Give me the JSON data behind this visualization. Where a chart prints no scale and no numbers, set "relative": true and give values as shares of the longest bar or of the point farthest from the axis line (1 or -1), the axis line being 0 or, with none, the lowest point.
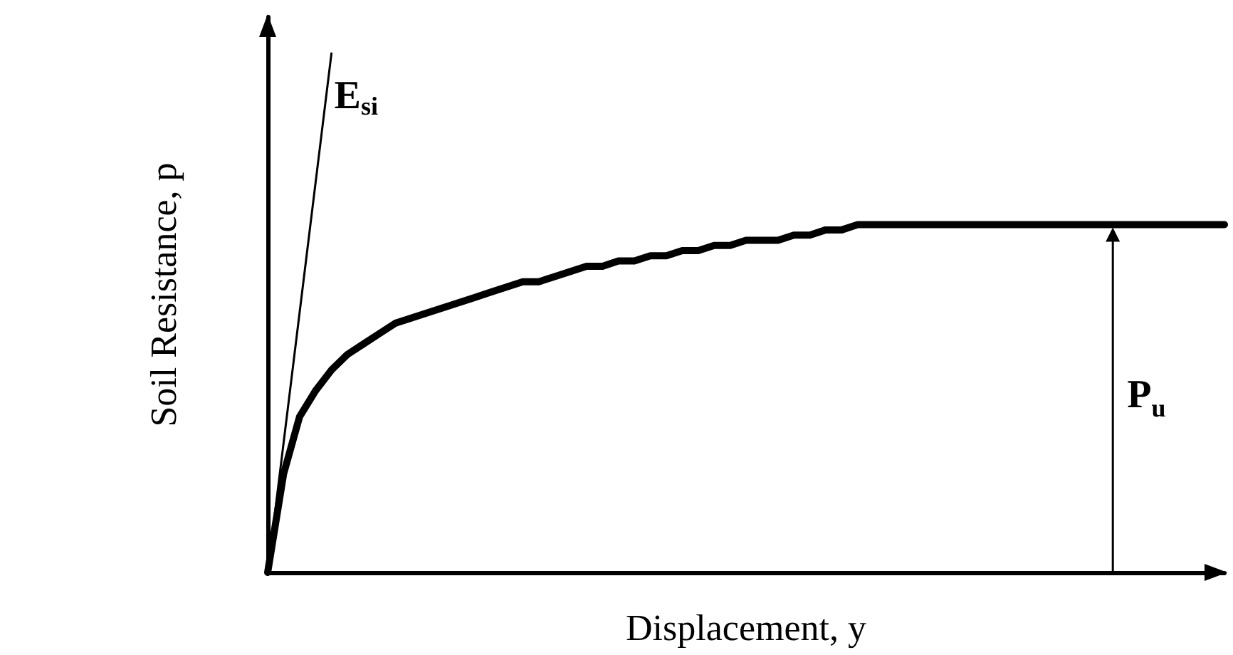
{
  "chart_data": {
    "type": "line",
    "relative": true,
    "xlabel": "Displacement, y",
    "ylabel": "Soil Resistance, p",
    "tick_labels": false,
    "grid": false,
    "marker": "none",
    "categories": [
      null,
      null,
      null,
      null,
      null,
      null,
      null,
      null,
      null,
      null,
      null,
      null,
      null,
      null,
      null,
      null,
      null,
      null,
      null,
      null,
      null,
      null,
      null,
      null,
      null,
      null,
      null,
      null,
      null,
      null,
      null,
      null,
      null,
      null,
      null,
      null,
      null,
      null,
      null,
      null,
      null,
      null,
      null,
      null,
      null,
      null,
      null,
      null,
      null,
      null,
      null,
      null,
      null,
      null,
      null,
      null,
      null,
      null,
      null,
      null,
      null
    ],
    "series": [
      {
        "color": "#000000",
        "values": [
          0,
          0.19,
          0.3,
          0.35,
          0.39,
          0.42,
          0.44,
          0.46,
          0.48,
          0.49,
          0.5,
          0.51,
          0.52,
          0.53,
          0.54,
          0.55,
          0.56,
          0.56,
          0.57,
          0.58,
          0.59,
          0.59,
          0.6,
          0.6,
          0.61,
          0.61,
          0.62,
          0.62,
          0.63,
          0.63,
          0.64,
          0.64,
          0.64,
          0.65,
          0.65,
          0.66,
          0.66,
          0.67,
          0.67,
          0.67,
          0.67,
          0.67,
          0.67,
          0.67,
          0.67,
          0.67,
          0.67,
          0.67,
          0.67,
          0.67,
          0.67,
          0.67,
          0.67,
          0.67,
          0.67,
          0.67,
          0.67,
          0.67,
          0.67,
          0.67,
          0.67
        ]
      },
      {
        "name": "E$_{si}$",
        "color": "#000000",
        "values": [
          0,
          0.25,
          0.5,
          0.75,
          1,
          null,
          null,
          null,
          null,
          null,
          null,
          null,
          null,
          null,
          null,
          null,
          null,
          null,
          null,
          null,
          null,
          null,
          null,
          null,
          null,
          null,
          null,
          null,
          null,
          null,
          null,
          null,
          null,
          null,
          null,
          null,
          null,
          null,
          null,
          null,
          null,
          null,
          null,
          null,
          null,
          null,
          null,
          null,
          null,
          null,
          null,
          null,
          null,
          null,
          null,
          null,
          null,
          null,
          null,
          null,
          null
        ]
      }
    ],
    "annotations": [
      "P$_{u}$"
    ]
  }
}
